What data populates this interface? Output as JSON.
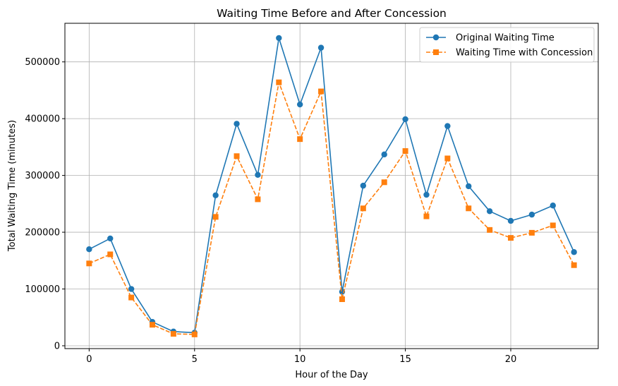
{
  "chart_data": {
    "type": "line",
    "title": "Waiting Time Before and After Concession",
    "xlabel": "Hour of the Day",
    "ylabel": "Total Waiting Time (minutes)",
    "x": [
      0,
      1,
      2,
      3,
      4,
      5,
      6,
      7,
      8,
      9,
      10,
      11,
      12,
      13,
      14,
      15,
      16,
      17,
      18,
      19,
      20,
      21,
      22,
      23
    ],
    "xlim": [
      -1.15,
      24.15
    ],
    "ylim": [
      -5000,
      568000
    ],
    "xticks": [
      0,
      5,
      10,
      15,
      20
    ],
    "xtick_labels": [
      "0",
      "5",
      "10",
      "15",
      "20"
    ],
    "yticks": [
      0,
      100000,
      200000,
      300000,
      400000,
      500000
    ],
    "ytick_labels": [
      "0",
      "100000",
      "200000",
      "300000",
      "400000",
      "500000"
    ],
    "grid": true,
    "legend_position": "top-right",
    "series": [
      {
        "name": "Original Waiting Time",
        "color": "#1f77b4",
        "marker": "circle",
        "line_style": "solid",
        "values": [
          170000,
          189000,
          100000,
          42000,
          25000,
          23000,
          265000,
          391000,
          301000,
          542000,
          425000,
          525000,
          95000,
          282000,
          337000,
          399000,
          266000,
          387000,
          281000,
          237000,
          220000,
          231000,
          247000,
          165000
        ]
      },
      {
        "name": "Waiting Time with Concession",
        "color": "#ff7f0e",
        "marker": "square",
        "line_style": "dashed",
        "values": [
          145000,
          161000,
          85000,
          37000,
          21000,
          20000,
          227000,
          334000,
          258000,
          464000,
          364000,
          448000,
          82000,
          242000,
          288000,
          343000,
          228000,
          330000,
          242000,
          204000,
          190000,
          199000,
          212000,
          142000
        ]
      }
    ]
  }
}
